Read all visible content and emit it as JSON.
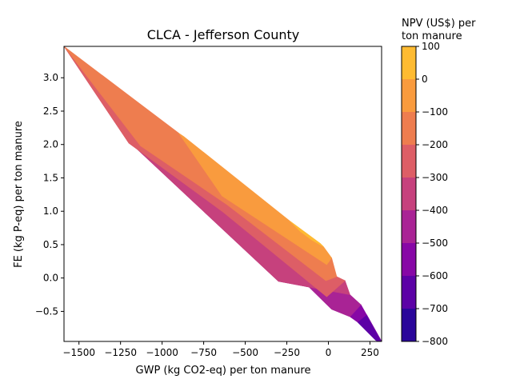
{
  "chart_data": {
    "type": "contourf",
    "title": "CLCA - Jefferson County",
    "xlabel": "GWP (kg CO2-eq) per ton manure",
    "ylabel": "FE (kg P-eq) per ton manure",
    "xlim": [
      -1590,
      320
    ],
    "ylim": [
      -0.95,
      3.47
    ],
    "x_ticks": [
      -1500,
      -1250,
      -1000,
      -750,
      -500,
      -250,
      0,
      250
    ],
    "x_tick_labels": [
      "−1500",
      "−1250",
      "−1000",
      "−750",
      "−500",
      "−250",
      "0",
      "250"
    ],
    "y_ticks": [
      -0.5,
      0.0,
      0.5,
      1.0,
      1.5,
      2.0,
      2.5,
      3.0
    ],
    "y_tick_labels": [
      "−0.5",
      "0.0",
      "0.5",
      "1.0",
      "1.5",
      "2.0",
      "2.5",
      "3.0"
    ],
    "colorbar": {
      "label_lines": [
        "NPV (US$) per",
        "ton manure"
      ],
      "levels": [
        -800,
        -700,
        -600,
        -500,
        -400,
        -300,
        -200,
        -100,
        0,
        100
      ],
      "tick_labels": [
        "−800",
        "−700",
        "−600",
        "−500",
        "−400",
        "−300",
        "−200",
        "−100",
        "0",
        "100"
      ],
      "colors": [
        "#2a069a",
        "#5c01a6",
        "#8707a6",
        "#a92395",
        "#c6417d",
        "#dd5e66",
        "#ee7d4f",
        "#f99b3e",
        "#febb32",
        "#fadb24"
      ]
    },
    "regions": [
      {
        "level_range": [
          -800,
          -700
        ],
        "color": "#2a069a",
        "points": [
          [
            300,
            -0.95
          ],
          [
            283,
            -0.93
          ],
          [
            320,
            -0.95
          ]
        ]
      },
      {
        "level_range": [
          -700,
          -600
        ],
        "color": "#5c01a6",
        "points": [
          [
            320,
            -0.95
          ],
          [
            230,
            -0.55
          ],
          [
            175,
            -0.66
          ],
          [
            283,
            -0.93
          ],
          [
            300,
            -0.95
          ]
        ]
      },
      {
        "level_range": [
          -600,
          -500
        ],
        "color": "#8707a6",
        "points": [
          [
            320,
            -0.95
          ],
          [
            196,
            -0.4
          ],
          [
            130,
            -0.58
          ],
          [
            175,
            -0.66
          ],
          [
            230,
            -0.55
          ]
        ]
      },
      {
        "level_range": [
          -500,
          -400
        ],
        "color": "#a92395",
        "points": [
          [
            196,
            -0.4
          ],
          [
            130,
            -0.58
          ],
          [
            20,
            -0.47
          ],
          [
            -1590,
            3.47
          ],
          [
            -1560,
            3.4
          ],
          [
            -1180,
            2.0
          ],
          [
            -300,
            -0.05
          ],
          [
            130,
            -0.25
          ]
        ]
      },
      {
        "level_range": [
          -400,
          -300
        ],
        "color": "#c6417d",
        "points": [
          [
            130,
            -0.25
          ],
          [
            -300,
            -0.05
          ],
          [
            -1180,
            2.0
          ],
          [
            -1560,
            3.4
          ],
          [
            -1590,
            3.47
          ],
          [
            -1200,
            2.02
          ],
          [
            -640,
            1.0
          ],
          [
            -10,
            -0.28
          ],
          [
            100,
            -0.04
          ]
        ]
      },
      {
        "level_range": [
          -300,
          -200
        ],
        "color": "#dd5e66",
        "points": [
          [
            100,
            -0.04
          ],
          [
            -10,
            -0.28
          ],
          [
            -640,
            1.0
          ],
          [
            -1200,
            2.02
          ],
          [
            -1590,
            3.47
          ],
          [
            -1130,
            1.98
          ],
          [
            -610,
            1.1
          ],
          [
            -15,
            -0.04
          ],
          [
            50,
            0.02
          ]
        ]
      },
      {
        "level_range": [
          -200,
          -100
        ],
        "color": "#ee7d4f",
        "points": [
          [
            50,
            0.02
          ],
          [
            -15,
            -0.04
          ],
          [
            -610,
            1.1
          ],
          [
            -1130,
            1.98
          ],
          [
            -1590,
            3.47
          ],
          [
            -900,
            2.17
          ],
          [
            -640,
            1.23
          ],
          [
            -10,
            0.2
          ],
          [
            20,
            0.3
          ]
        ]
      },
      {
        "level_range": [
          -100,
          0
        ],
        "color": "#f99b3e",
        "points": [
          [
            20,
            0.3
          ],
          [
            -10,
            0.2
          ],
          [
            -640,
            1.23
          ],
          [
            -900,
            2.17
          ],
          [
            -870,
            2.12
          ],
          [
            -230,
            0.85
          ],
          [
            -50,
            0.52
          ],
          [
            -30,
            0.47
          ]
        ]
      },
      {
        "level_range": [
          0,
          100
        ],
        "color": "#febb32",
        "points": [
          [
            -30,
            0.47
          ],
          [
            -50,
            0.52
          ],
          [
            -230,
            0.85
          ],
          [
            -170,
            0.7
          ],
          [
            -100,
            0.57
          ]
        ]
      }
    ]
  }
}
